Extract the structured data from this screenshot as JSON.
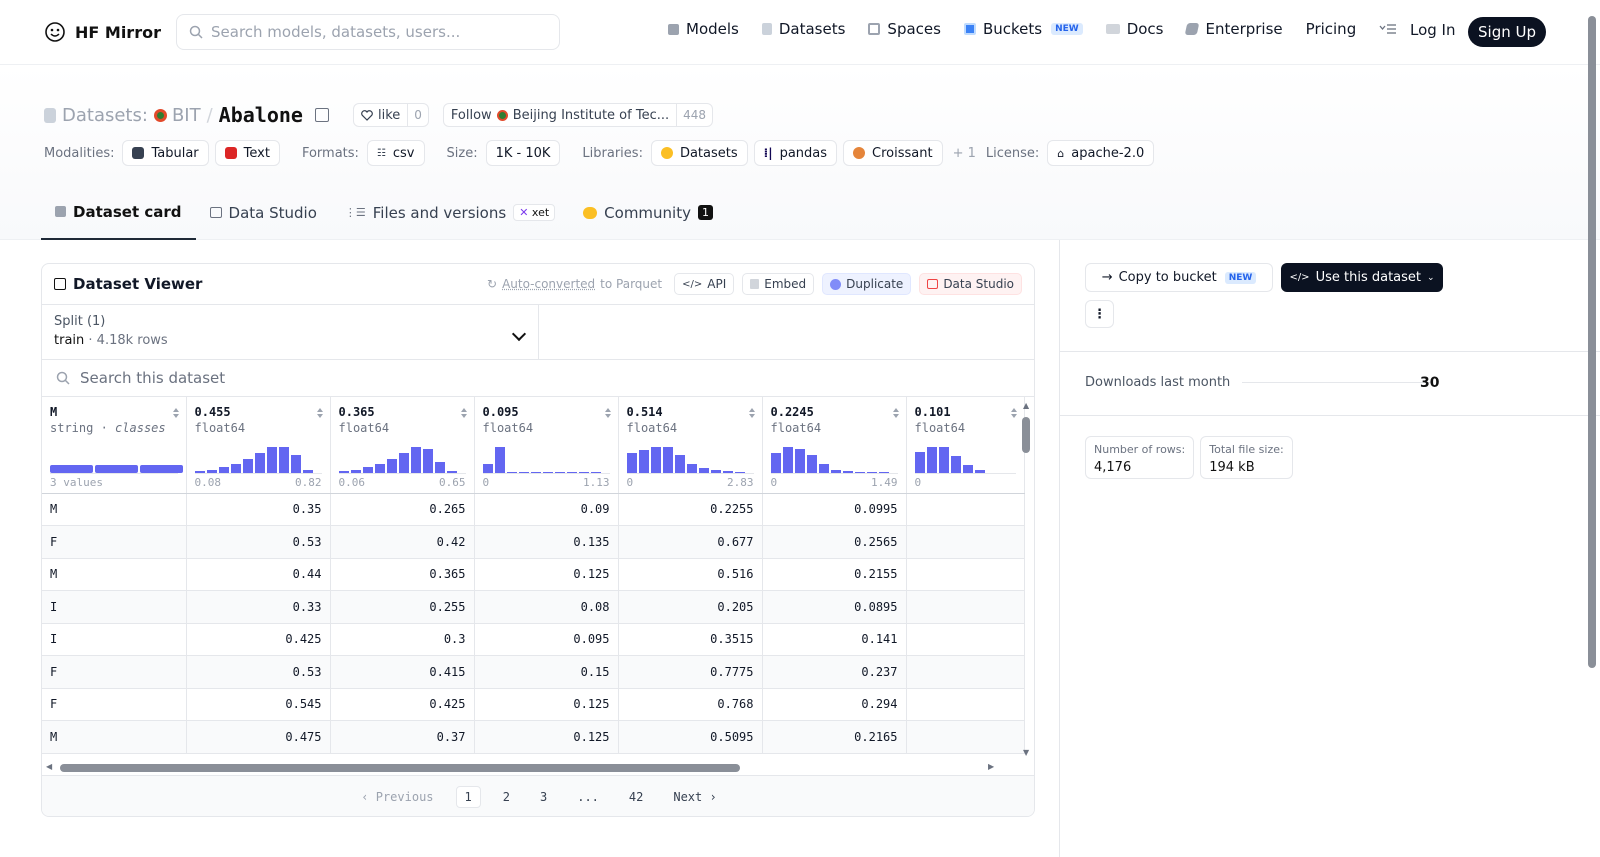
{
  "nav": {
    "brand": "HF Mirror",
    "search_placeholder": "Search models, datasets, users...",
    "links": [
      {
        "label": "Models",
        "icon": "cube-icon"
      },
      {
        "label": "Datasets",
        "icon": "database-icon"
      },
      {
        "label": "Spaces",
        "icon": "grid-icon"
      },
      {
        "label": "Buckets",
        "icon": "bucket-icon",
        "badge": "NEW"
      },
      {
        "label": "Docs",
        "icon": "book-icon"
      },
      {
        "label": "Enterprise",
        "icon": "enterprise-icon"
      },
      {
        "label": "Pricing"
      }
    ],
    "login": "Log In",
    "signup": "Sign Up"
  },
  "header": {
    "prefix": "Datasets:",
    "org": "BIT",
    "name": "Abalone",
    "like_label": "like",
    "like_count": "0",
    "follow_label": "Follow",
    "follow_org": "Beijing Institute of Tec...",
    "follow_count": "448",
    "modalities_label": "Modalities:",
    "modalities": [
      "Tabular",
      "Text"
    ],
    "formats_label": "Formats:",
    "formats": [
      "csv"
    ],
    "size_label": "Size:",
    "size": "1K - 10K",
    "libraries_label": "Libraries:",
    "libraries": [
      "Datasets",
      "pandas",
      "Croissant"
    ],
    "libraries_more": "+ 1",
    "license_label": "License:",
    "license": "apache-2.0"
  },
  "tabs": [
    {
      "label": "Dataset card",
      "active": true
    },
    {
      "label": "Data Studio"
    },
    {
      "label": "Files and versions",
      "badge": "xet"
    },
    {
      "label": "Community",
      "count": "1"
    }
  ],
  "viewer": {
    "title": "Dataset Viewer",
    "auto_converted": "Auto-converted",
    "to_parquet": "to Parquet",
    "buttons": [
      "API",
      "Embed",
      "Duplicate",
      "Data Studio"
    ],
    "split_label": "Split (1)",
    "split_value": "train",
    "split_rows": "4.18k rows",
    "search_placeholder": "Search this dataset",
    "columns": [
      {
        "name": "M",
        "type": "string",
        "kind": "classes",
        "range_left": "3 values",
        "range_right": ""
      },
      {
        "name": "0.455",
        "type": "float64",
        "range_left": "0.08",
        "range_right": "0.82",
        "hist": [
          0.05,
          0.1,
          0.2,
          0.3,
          0.45,
          0.65,
          0.85,
          0.85,
          0.6,
          0.1
        ]
      },
      {
        "name": "0.365",
        "type": "float64",
        "range_left": "0.06",
        "range_right": "0.65",
        "hist": [
          0.05,
          0.1,
          0.2,
          0.3,
          0.45,
          0.65,
          0.85,
          0.8,
          0.35,
          0.05
        ]
      },
      {
        "name": "0.095",
        "type": "float64",
        "range_left": "0",
        "range_right": "1.13",
        "hist": [
          0.3,
          0.85,
          0.03,
          0.0,
          0.02,
          0.0,
          0.0,
          0.0,
          0.0,
          0.02
        ]
      },
      {
        "name": "0.514",
        "type": "float64",
        "range_left": "0",
        "range_right": "2.83",
        "hist": [
          0.65,
          0.75,
          0.85,
          0.85,
          0.6,
          0.3,
          0.15,
          0.1,
          0.05,
          0.03
        ]
      },
      {
        "name": "0.2245",
        "type": "float64",
        "range_left": "0",
        "range_right": "1.49",
        "hist": [
          0.65,
          0.85,
          0.8,
          0.6,
          0.3,
          0.1,
          0.05,
          0.03,
          0.02,
          0.02
        ]
      },
      {
        "name": "0.101",
        "type": "float64",
        "range_left": "0",
        "range_right": "",
        "hist": [
          0.7,
          0.85,
          0.85,
          0.55,
          0.25,
          0.1
        ]
      }
    ],
    "rows": [
      [
        "M",
        "0.35",
        "0.265",
        "0.09",
        "0.2255",
        "0.0995",
        ""
      ],
      [
        "F",
        "0.53",
        "0.42",
        "0.135",
        "0.677",
        "0.2565",
        ""
      ],
      [
        "M",
        "0.44",
        "0.365",
        "0.125",
        "0.516",
        "0.2155",
        ""
      ],
      [
        "I",
        "0.33",
        "0.255",
        "0.08",
        "0.205",
        "0.0895",
        ""
      ],
      [
        "I",
        "0.425",
        "0.3",
        "0.095",
        "0.3515",
        "0.141",
        ""
      ],
      [
        "F",
        "0.53",
        "0.415",
        "0.15",
        "0.7775",
        "0.237",
        ""
      ],
      [
        "F",
        "0.545",
        "0.425",
        "0.125",
        "0.768",
        "0.294",
        ""
      ],
      [
        "M",
        "0.475",
        "0.37",
        "0.125",
        "0.5095",
        "0.2165",
        ""
      ]
    ],
    "pager": {
      "prev": "Previous",
      "pages": [
        "1",
        "2",
        "3",
        "...",
        "42"
      ],
      "next": "Next"
    }
  },
  "sidebar": {
    "copy_bucket": "Copy to bucket",
    "copy_badge": "NEW",
    "use_dataset": "Use this dataset",
    "downloads_label": "Downloads last month",
    "downloads_value": "30",
    "rows_label": "Number of rows:",
    "rows_value": "4,176",
    "size_label": "Total file size:",
    "size_value": "194 kB"
  },
  "colors": {
    "accent": "#6366f1",
    "dark": "#0b1221",
    "border": "#e5e7eb"
  }
}
